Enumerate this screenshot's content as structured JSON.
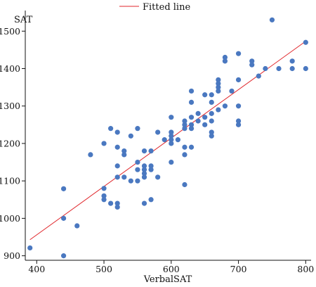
{
  "chart_data": {
    "type": "scatter",
    "title": "",
    "xlabel": "VerbalSAT",
    "ylabel": "SAT",
    "xlim": [
      383,
      808
    ],
    "ylim": [
      888,
      1555
    ],
    "xticks": [
      400,
      500,
      600,
      700,
      800
    ],
    "yticks": [
      900,
      1000,
      1100,
      1200,
      1300,
      1400,
      1500
    ],
    "grid": false,
    "legend": {
      "placement": "top-center",
      "entries": [
        "Fitted line"
      ]
    },
    "colors": {
      "points": "#4a78c0",
      "fit_line": "#e0262b",
      "axis": "#111111"
    },
    "fitted_line": {
      "x": [
        390,
        800
      ],
      "y": [
        943,
        1473
      ]
    },
    "points": [
      {
        "x": 390,
        "y": 921
      },
      {
        "x": 440,
        "y": 900
      },
      {
        "x": 440,
        "y": 1000
      },
      {
        "x": 440,
        "y": 1079
      },
      {
        "x": 460,
        "y": 980
      },
      {
        "x": 480,
        "y": 1170
      },
      {
        "x": 500,
        "y": 1050
      },
      {
        "x": 500,
        "y": 1060
      },
      {
        "x": 500,
        "y": 1080
      },
      {
        "x": 500,
        "y": 1200
      },
      {
        "x": 510,
        "y": 1040
      },
      {
        "x": 510,
        "y": 1240
      },
      {
        "x": 520,
        "y": 1030
      },
      {
        "x": 520,
        "y": 1040
      },
      {
        "x": 520,
        "y": 1110
      },
      {
        "x": 520,
        "y": 1140
      },
      {
        "x": 520,
        "y": 1190
      },
      {
        "x": 520,
        "y": 1230
      },
      {
        "x": 530,
        "y": 1110
      },
      {
        "x": 530,
        "y": 1170
      },
      {
        "x": 530,
        "y": 1180
      },
      {
        "x": 540,
        "y": 1100
      },
      {
        "x": 540,
        "y": 1220
      },
      {
        "x": 550,
        "y": 1100
      },
      {
        "x": 550,
        "y": 1130
      },
      {
        "x": 550,
        "y": 1150
      },
      {
        "x": 550,
        "y": 1240
      },
      {
        "x": 560,
        "y": 1040
      },
      {
        "x": 560,
        "y": 1110
      },
      {
        "x": 560,
        "y": 1120
      },
      {
        "x": 560,
        "y": 1130
      },
      {
        "x": 560,
        "y": 1140
      },
      {
        "x": 560,
        "y": 1180
      },
      {
        "x": 570,
        "y": 1050
      },
      {
        "x": 570,
        "y": 1130
      },
      {
        "x": 570,
        "y": 1140
      },
      {
        "x": 570,
        "y": 1180
      },
      {
        "x": 580,
        "y": 1110
      },
      {
        "x": 580,
        "y": 1230
      },
      {
        "x": 590,
        "y": 1210
      },
      {
        "x": 600,
        "y": 1150
      },
      {
        "x": 600,
        "y": 1200
      },
      {
        "x": 600,
        "y": 1210
      },
      {
        "x": 600,
        "y": 1220
      },
      {
        "x": 600,
        "y": 1230
      },
      {
        "x": 600,
        "y": 1270
      },
      {
        "x": 610,
        "y": 1210
      },
      {
        "x": 620,
        "y": 1090
      },
      {
        "x": 620,
        "y": 1170
      },
      {
        "x": 620,
        "y": 1190
      },
      {
        "x": 620,
        "y": 1240
      },
      {
        "x": 620,
        "y": 1250
      },
      {
        "x": 620,
        "y": 1260
      },
      {
        "x": 630,
        "y": 1190
      },
      {
        "x": 630,
        "y": 1240
      },
      {
        "x": 630,
        "y": 1250
      },
      {
        "x": 630,
        "y": 1270
      },
      {
        "x": 630,
        "y": 1310
      },
      {
        "x": 630,
        "y": 1340
      },
      {
        "x": 640,
        "y": 1260
      },
      {
        "x": 640,
        "y": 1280
      },
      {
        "x": 650,
        "y": 1250
      },
      {
        "x": 650,
        "y": 1270
      },
      {
        "x": 650,
        "y": 1330
      },
      {
        "x": 660,
        "y": 1220
      },
      {
        "x": 660,
        "y": 1230
      },
      {
        "x": 660,
        "y": 1260
      },
      {
        "x": 660,
        "y": 1280
      },
      {
        "x": 660,
        "y": 1310
      },
      {
        "x": 660,
        "y": 1330
      },
      {
        "x": 670,
        "y": 1290
      },
      {
        "x": 670,
        "y": 1340
      },
      {
        "x": 670,
        "y": 1350
      },
      {
        "x": 670,
        "y": 1360
      },
      {
        "x": 670,
        "y": 1370
      },
      {
        "x": 680,
        "y": 1300
      },
      {
        "x": 680,
        "y": 1420
      },
      {
        "x": 680,
        "y": 1430
      },
      {
        "x": 690,
        "y": 1340
      },
      {
        "x": 700,
        "y": 1250
      },
      {
        "x": 700,
        "y": 1260
      },
      {
        "x": 700,
        "y": 1300
      },
      {
        "x": 700,
        "y": 1370
      },
      {
        "x": 700,
        "y": 1440
      },
      {
        "x": 720,
        "y": 1410
      },
      {
        "x": 720,
        "y": 1420
      },
      {
        "x": 730,
        "y": 1380
      },
      {
        "x": 740,
        "y": 1400
      },
      {
        "x": 750,
        "y": 1530
      },
      {
        "x": 760,
        "y": 1400
      },
      {
        "x": 780,
        "y": 1400
      },
      {
        "x": 780,
        "y": 1420
      },
      {
        "x": 800,
        "y": 1400
      },
      {
        "x": 800,
        "y": 1470
      }
    ]
  }
}
